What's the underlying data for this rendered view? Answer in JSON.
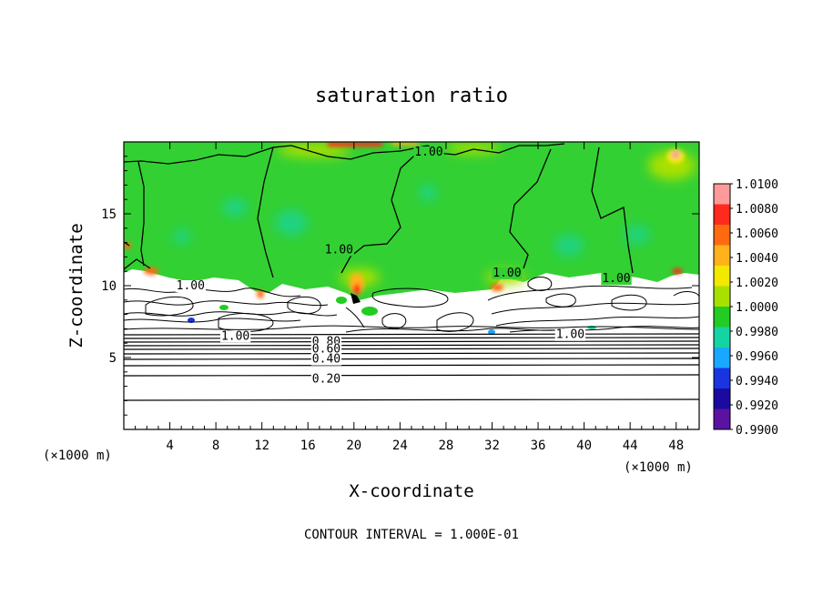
{
  "chart_data": {
    "type": "heatmap",
    "title": "saturation ratio",
    "xlabel": "X-coordinate",
    "ylabel": "Z-coordinate",
    "x_unit_left": "(×1000 m)",
    "x_unit_right": "(×1000 m)",
    "xlim": [
      0,
      50
    ],
    "ylim": [
      0,
      20
    ],
    "x_ticks": [
      4,
      8,
      12,
      16,
      20,
      24,
      28,
      32,
      36,
      40,
      44,
      48
    ],
    "y_ticks": [
      5,
      10,
      15
    ],
    "colorbar": {
      "levels": [
        "1.0100",
        "1.0080",
        "1.0060",
        "1.0040",
        "1.0020",
        "1.0000",
        "0.9980",
        "0.9960",
        "0.9940",
        "0.9920",
        "0.9900"
      ],
      "colors": [
        "#ff9a9a",
        "#ff2a1e",
        "#ff6a10",
        "#ffb21a",
        "#f2e800",
        "#a8e000",
        "#22cc22",
        "#14d4a4",
        "#19a8ff",
        "#1a34e0",
        "#1a0aa0",
        "#5a12a0"
      ]
    },
    "contour_labels": [
      {
        "text": "1.00",
        "x": 26.5,
        "y": 19.3
      },
      {
        "text": "1.00",
        "x": 18.7,
        "y": 12.5
      },
      {
        "text": "1.00",
        "x": 33.3,
        "y": 10.9
      },
      {
        "text": "1.00",
        "x": 42.8,
        "y": 10.5
      },
      {
        "text": "1.00",
        "x": 5.8,
        "y": 10.0
      },
      {
        "text": "1.00",
        "x": 9.7,
        "y": 6.5
      },
      {
        "text": "1.00",
        "x": 38.8,
        "y": 6.6
      },
      {
        "text": "0.80",
        "x": 17.6,
        "y": 6.1
      },
      {
        "text": "0.60",
        "x": 17.6,
        "y": 5.6
      },
      {
        "text": "0.40",
        "x": 17.6,
        "y": 4.9
      },
      {
        "text": "0.20",
        "x": 17.6,
        "y": 3.5
      }
    ],
    "contour_levels": [
      0.1,
      0.2,
      0.3,
      0.4,
      0.5,
      0.6,
      0.7,
      0.8,
      0.9,
      1.0
    ],
    "note": "CONTOUR INTERVAL = 1.000E-01"
  }
}
